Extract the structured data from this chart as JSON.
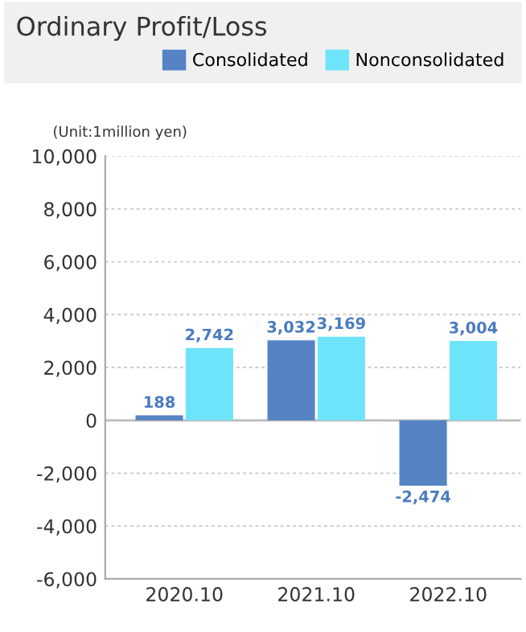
{
  "chart_data": {
    "type": "bar",
    "title": "Ordinary Profit/Loss",
    "annotations": [
      "(Unit:1million yen)"
    ],
    "categories": [
      "2020.10",
      "2021.10",
      "2022.10"
    ],
    "series": [
      {
        "name": "Consolidated",
        "color": "#5583c4",
        "values": [
          188,
          3032,
          -2474
        ],
        "value_labels": [
          "188",
          "3,032",
          "-2,474"
        ]
      },
      {
        "name": "Nonconsolidated",
        "color": "#6ee4fb",
        "values": [
          2742,
          3169,
          3004
        ],
        "value_labels": [
          "2,742",
          "3,169",
          "3,004"
        ]
      }
    ],
    "ylim": [
      -6000,
      10000
    ],
    "yticks": [
      {
        "value": -6000,
        "label": "-6,000"
      },
      {
        "value": -4000,
        "label": "-4,000"
      },
      {
        "value": -2000,
        "label": "-2,000"
      },
      0,
      {
        "value": 2000,
        "label": "2,000"
      },
      {
        "value": 4000,
        "label": "4,000"
      },
      {
        "value": 6000,
        "label": "6,000"
      },
      {
        "value": 8000,
        "label": "8,000"
      },
      {
        "value": 10000,
        "label": "10,000"
      }
    ],
    "grid": "y",
    "legend": "top right"
  }
}
